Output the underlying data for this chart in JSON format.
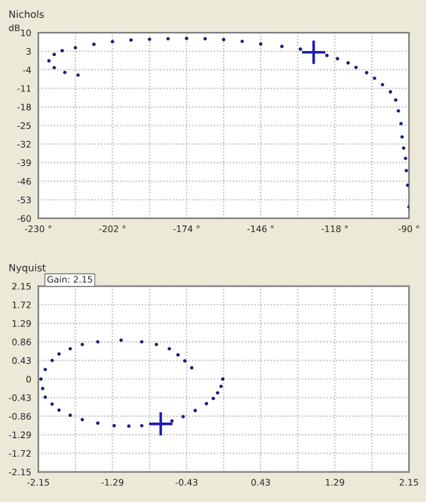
{
  "chart_data": [
    {
      "type": "scatter",
      "title": "Nichols",
      "ylabel": "dB",
      "xlim": [
        -230,
        -90
      ],
      "ylim": [
        -60,
        10
      ],
      "xticks": [
        {
          "value": -230,
          "label": "-230 °"
        },
        {
          "value": -216,
          "label": null
        },
        {
          "value": -202,
          "label": "-202 °"
        },
        {
          "value": -188,
          "label": null
        },
        {
          "value": -174,
          "label": "-174 °"
        },
        {
          "value": -160,
          "label": null
        },
        {
          "value": -146,
          "label": "-146 °"
        },
        {
          "value": -132,
          "label": null
        },
        {
          "value": -118,
          "label": "-118 °"
        },
        {
          "value": -104,
          "label": null
        },
        {
          "value": -90,
          "label": "-90 °"
        }
      ],
      "yticks": [
        10,
        3,
        -4,
        -11,
        -18,
        -25,
        -32,
        -39,
        -46,
        -53,
        -60
      ],
      "grid": true,
      "series": [
        {
          "color": "#1c1c7a",
          "marker": "circle",
          "x": [
            -215,
            -220,
            -224,
            -226,
            -224,
            -221,
            -216,
            -209,
            -202,
            -195,
            -188,
            -181,
            -174,
            -167,
            -160,
            -153,
            -146,
            -138,
            -131,
            -126,
            -121,
            -117,
            -113,
            -110,
            -106,
            -103,
            -100,
            -97,
            -95,
            -94,
            -93,
            -92.6,
            -92,
            -91.3,
            -91,
            -90.5,
            -90
          ],
          "values": [
            -6.0,
            -5.0,
            -3.2,
            -0.6,
            1.8,
            3.2,
            4.3,
            5.6,
            6.6,
            7.2,
            7.5,
            7.7,
            7.8,
            7.7,
            7.4,
            6.7,
            5.7,
            4.8,
            3.8,
            null,
            1.4,
            0.2,
            -1.4,
            -3.1,
            -5.1,
            -7.2,
            -9.6,
            -12.3,
            -15.4,
            -19.5,
            -24.3,
            -29.3,
            -33.5,
            -37.4,
            -42.0,
            -47.5,
            -55.7
          ]
        },
        {
          "color": "#1c1cb4",
          "marker": "cross",
          "x": [
            -126
          ],
          "values": [
            2.6
          ]
        }
      ]
    },
    {
      "type": "scatter",
      "title": "Nyquist",
      "annotations": [
        "Gain: 2.15"
      ],
      "xlim": [
        -2.15,
        2.15
      ],
      "ylim": [
        -2.15,
        2.15
      ],
      "xticks": [
        -2.15,
        {
          "value": -1.72,
          "label": null
        },
        -1.29,
        {
          "value": -0.86,
          "label": null
        },
        -0.43,
        {
          "value": 0,
          "label": null
        },
        0.43,
        {
          "value": 0.86,
          "label": null
        },
        1.29,
        {
          "value": 1.72,
          "label": null
        },
        2.15
      ],
      "yticks": [
        2.15,
        1.72,
        1.29,
        0.86,
        0.43,
        0,
        -0.43,
        -0.86,
        -1.29,
        -1.72,
        -2.15
      ],
      "grid": true,
      "series": [
        {
          "color": "#1c1c7a",
          "marker": "circle",
          "x": [
            -0.37,
            -0.45,
            -0.53,
            -0.63,
            -0.78,
            -0.95,
            -1.19,
            -1.46,
            -1.64,
            -1.78,
            -1.91,
            -1.99,
            -2.07,
            -2.12,
            -2.1,
            -2.07,
            -1.99,
            -1.91,
            -1.78,
            -1.64,
            -1.46,
            -1.27,
            -1.1,
            -0.95,
            -0.73,
            -0.6,
            -0.47,
            -0.33,
            -0.2,
            -0.12,
            -0.07,
            -0.03,
            -0.01
          ],
          "values": [
            0.26,
            0.42,
            0.56,
            0.7,
            0.8,
            0.86,
            0.9,
            0.86,
            0.8,
            0.7,
            0.58,
            0.43,
            0.22,
            0,
            -0.22,
            -0.42,
            -0.58,
            -0.72,
            -0.84,
            -0.94,
            -1.02,
            -1.08,
            -1.09,
            -1.08,
            null,
            -0.97,
            -0.87,
            -0.73,
            -0.57,
            -0.45,
            -0.32,
            -0.17,
            0.0
          ]
        },
        {
          "color": "#1c1cb4",
          "marker": "cross",
          "x": [
            -0.73
          ],
          "values": [
            -1.04
          ]
        }
      ]
    }
  ]
}
